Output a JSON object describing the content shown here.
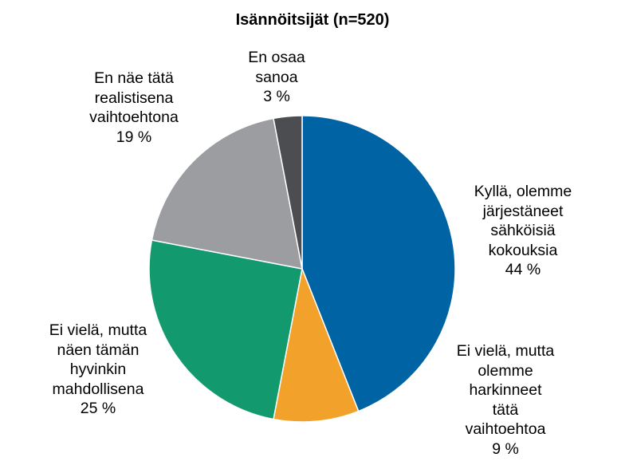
{
  "chart_data": {
    "type": "pie",
    "title": "Isännöitsijät (n=520)",
    "slices": [
      {
        "label_lines": [
          "Kyllä, olemme",
          "järjestäneet",
          "sähköisiä",
          "kokouksia"
        ],
        "value": 44,
        "value_label": "44 %",
        "color": "#0063A3"
      },
      {
        "label_lines": [
          "Ei vielä, mutta",
          "olemme",
          "harkinneet",
          "tätä",
          "vaihtoehtoa"
        ],
        "value": 9,
        "value_label": "9 %",
        "color": "#F2A12A"
      },
      {
        "label_lines": [
          "Ei vielä, mutta",
          "näen tämän",
          "hyvinkin",
          "mahdollisena"
        ],
        "value": 25,
        "value_label": "25 %",
        "color": "#13996E"
      },
      {
        "label_lines": [
          "En näe tätä",
          "realistisena",
          "vaihtoehtona"
        ],
        "value": 19,
        "value_label": "19 %",
        "color": "#9B9DA0"
      },
      {
        "label_lines": [
          "En osaa",
          "sanoa"
        ],
        "value": 3,
        "value_label": "3 %",
        "color": "#4B4D50"
      }
    ]
  }
}
